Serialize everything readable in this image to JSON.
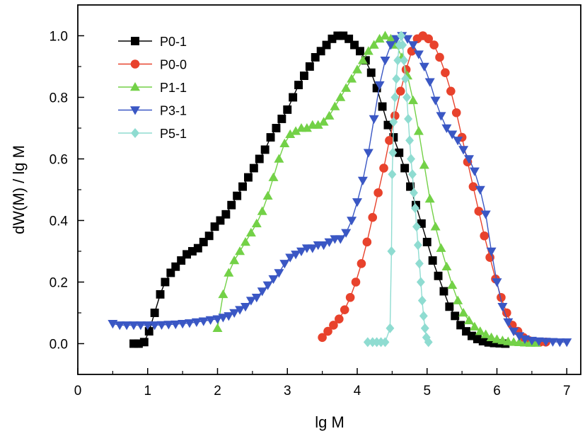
{
  "chart_data": {
    "type": "line",
    "title": "",
    "xlabel": "lg M",
    "ylabel": "dW(M) / lg M",
    "xlim": [
      0,
      7.2
    ],
    "ylim": [
      -0.1,
      1.1
    ],
    "x_ticks": [
      "0",
      "1",
      "2",
      "3",
      "4",
      "5",
      "6",
      "7"
    ],
    "y_ticks": [
      "0.0",
      "0.2",
      "0.4",
      "0.6",
      "0.8",
      "1.0"
    ],
    "grid": false,
    "legend_position": "top-left",
    "series": [
      {
        "name": "P0-1",
        "color": "#000000",
        "marker": "square",
        "points": [
          [
            0.8,
            0.0
          ],
          [
            0.87,
            0.0
          ],
          [
            0.95,
            0.005
          ],
          [
            1.02,
            0.04
          ],
          [
            1.1,
            0.1
          ],
          [
            1.18,
            0.16
          ],
          [
            1.25,
            0.2
          ],
          [
            1.33,
            0.23
          ],
          [
            1.4,
            0.25
          ],
          [
            1.48,
            0.27
          ],
          [
            1.56,
            0.29
          ],
          [
            1.64,
            0.3
          ],
          [
            1.72,
            0.31
          ],
          [
            1.8,
            0.33
          ],
          [
            1.88,
            0.35
          ],
          [
            1.96,
            0.38
          ],
          [
            2.04,
            0.4
          ],
          [
            2.12,
            0.42
          ],
          [
            2.2,
            0.45
          ],
          [
            2.28,
            0.48
          ],
          [
            2.36,
            0.51
          ],
          [
            2.44,
            0.54
          ],
          [
            2.52,
            0.57
          ],
          [
            2.6,
            0.6
          ],
          [
            2.68,
            0.63
          ],
          [
            2.76,
            0.67
          ],
          [
            2.84,
            0.7
          ],
          [
            2.92,
            0.73
          ],
          [
            3.0,
            0.76
          ],
          [
            3.08,
            0.8
          ],
          [
            3.16,
            0.84
          ],
          [
            3.24,
            0.87
          ],
          [
            3.32,
            0.9
          ],
          [
            3.4,
            0.93
          ],
          [
            3.48,
            0.95
          ],
          [
            3.56,
            0.97
          ],
          [
            3.64,
            0.99
          ],
          [
            3.72,
            1.0
          ],
          [
            3.8,
            1.0
          ],
          [
            3.88,
            0.99
          ],
          [
            3.96,
            0.97
          ],
          [
            4.04,
            0.95
          ],
          [
            4.12,
            0.92
          ],
          [
            4.2,
            0.88
          ],
          [
            4.28,
            0.83
          ],
          [
            4.36,
            0.77
          ],
          [
            4.44,
            0.71
          ],
          [
            4.52,
            0.67
          ],
          [
            4.6,
            0.62
          ],
          [
            4.68,
            0.57
          ],
          [
            4.76,
            0.51
          ],
          [
            4.84,
            0.45
          ],
          [
            4.92,
            0.39
          ],
          [
            5.0,
            0.33
          ],
          [
            5.08,
            0.27
          ],
          [
            5.16,
            0.22
          ],
          [
            5.24,
            0.17
          ],
          [
            5.32,
            0.12
          ],
          [
            5.4,
            0.09
          ],
          [
            5.48,
            0.06
          ],
          [
            5.56,
            0.04
          ],
          [
            5.64,
            0.025
          ],
          [
            5.72,
            0.015
          ],
          [
            5.8,
            0.008
          ],
          [
            5.88,
            0.004
          ],
          [
            5.96,
            0.002
          ],
          [
            6.04,
            0.001
          ],
          [
            6.12,
            0.0
          ]
        ]
      },
      {
        "name": "P0-0",
        "color": "#e8422c",
        "marker": "circle",
        "points": [
          [
            3.5,
            0.02
          ],
          [
            3.58,
            0.04
          ],
          [
            3.66,
            0.06
          ],
          [
            3.74,
            0.08
          ],
          [
            3.82,
            0.11
          ],
          [
            3.9,
            0.15
          ],
          [
            3.98,
            0.2
          ],
          [
            4.06,
            0.26
          ],
          [
            4.14,
            0.33
          ],
          [
            4.22,
            0.41
          ],
          [
            4.3,
            0.49
          ],
          [
            4.38,
            0.57
          ],
          [
            4.46,
            0.66
          ],
          [
            4.54,
            0.74
          ],
          [
            4.62,
            0.82
          ],
          [
            4.7,
            0.89
          ],
          [
            4.78,
            0.95
          ],
          [
            4.86,
            0.99
          ],
          [
            4.94,
            1.0
          ],
          [
            5.02,
            0.99
          ],
          [
            5.1,
            0.97
          ],
          [
            5.18,
            0.93
          ],
          [
            5.26,
            0.88
          ],
          [
            5.34,
            0.82
          ],
          [
            5.42,
            0.75
          ],
          [
            5.5,
            0.67
          ],
          [
            5.58,
            0.59
          ],
          [
            5.66,
            0.51
          ],
          [
            5.74,
            0.43
          ],
          [
            5.82,
            0.35
          ],
          [
            5.9,
            0.28
          ],
          [
            5.98,
            0.21
          ],
          [
            6.06,
            0.15
          ],
          [
            6.14,
            0.1
          ],
          [
            6.22,
            0.06
          ],
          [
            6.3,
            0.04
          ],
          [
            6.38,
            0.02
          ],
          [
            6.46,
            0.01
          ],
          [
            6.54,
            0.005
          ],
          [
            6.62,
            0.005
          ],
          [
            6.7,
            0.005
          ]
        ]
      },
      {
        "name": "P1-1",
        "color": "#73d147",
        "marker": "triangle-up",
        "points": [
          [
            2.0,
            0.05
          ],
          [
            2.08,
            0.16
          ],
          [
            2.16,
            0.23
          ],
          [
            2.24,
            0.27
          ],
          [
            2.32,
            0.3
          ],
          [
            2.4,
            0.33
          ],
          [
            2.48,
            0.36
          ],
          [
            2.56,
            0.39
          ],
          [
            2.64,
            0.43
          ],
          [
            2.72,
            0.48
          ],
          [
            2.8,
            0.54
          ],
          [
            2.88,
            0.6
          ],
          [
            2.96,
            0.65
          ],
          [
            3.04,
            0.68
          ],
          [
            3.12,
            0.69
          ],
          [
            3.2,
            0.7
          ],
          [
            3.28,
            0.7
          ],
          [
            3.36,
            0.71
          ],
          [
            3.44,
            0.71
          ],
          [
            3.52,
            0.72
          ],
          [
            3.6,
            0.74
          ],
          [
            3.68,
            0.77
          ],
          [
            3.76,
            0.8
          ],
          [
            3.84,
            0.83
          ],
          [
            3.92,
            0.86
          ],
          [
            4.0,
            0.89
          ],
          [
            4.08,
            0.92
          ],
          [
            4.16,
            0.95
          ],
          [
            4.24,
            0.97
          ],
          [
            4.32,
            0.99
          ],
          [
            4.4,
            1.0
          ],
          [
            4.48,
            0.99
          ],
          [
            4.56,
            0.97
          ],
          [
            4.64,
            0.93
          ],
          [
            4.72,
            0.87
          ],
          [
            4.8,
            0.79
          ],
          [
            4.88,
            0.69
          ],
          [
            4.96,
            0.58
          ],
          [
            5.04,
            0.47
          ],
          [
            5.12,
            0.38
          ],
          [
            5.2,
            0.31
          ],
          [
            5.28,
            0.25
          ],
          [
            5.36,
            0.19
          ],
          [
            5.44,
            0.14
          ],
          [
            5.52,
            0.1
          ],
          [
            5.6,
            0.075
          ],
          [
            5.68,
            0.055
          ],
          [
            5.76,
            0.04
          ],
          [
            5.84,
            0.03
          ],
          [
            5.92,
            0.02
          ],
          [
            6.0,
            0.014
          ],
          [
            6.08,
            0.01
          ],
          [
            6.16,
            0.007
          ],
          [
            6.24,
            0.005
          ],
          [
            6.32,
            0.004
          ],
          [
            6.4,
            0.003
          ],
          [
            6.48,
            0.002
          ],
          [
            6.56,
            0.002
          ]
        ]
      },
      {
        "name": "P3-1",
        "color": "#3a57c4",
        "marker": "triangle-down",
        "points": [
          [
            0.5,
            0.065
          ],
          [
            0.6,
            0.06
          ],
          [
            0.7,
            0.06
          ],
          [
            0.8,
            0.06
          ],
          [
            0.9,
            0.06
          ],
          [
            1.0,
            0.06
          ],
          [
            1.1,
            0.06
          ],
          [
            1.2,
            0.061
          ],
          [
            1.3,
            0.062
          ],
          [
            1.4,
            0.063
          ],
          [
            1.5,
            0.065
          ],
          [
            1.6,
            0.067
          ],
          [
            1.7,
            0.07
          ],
          [
            1.8,
            0.073
          ],
          [
            1.9,
            0.077
          ],
          [
            2.0,
            0.08
          ],
          [
            2.08,
            0.085
          ],
          [
            2.16,
            0.09
          ],
          [
            2.24,
            0.1
          ],
          [
            2.32,
            0.11
          ],
          [
            2.4,
            0.12
          ],
          [
            2.48,
            0.14
          ],
          [
            2.56,
            0.15
          ],
          [
            2.64,
            0.17
          ],
          [
            2.72,
            0.19
          ],
          [
            2.8,
            0.21
          ],
          [
            2.88,
            0.23
          ],
          [
            2.96,
            0.26
          ],
          [
            3.04,
            0.28
          ],
          [
            3.12,
            0.29
          ],
          [
            3.2,
            0.3
          ],
          [
            3.28,
            0.31
          ],
          [
            3.36,
            0.31
          ],
          [
            3.44,
            0.32
          ],
          [
            3.52,
            0.32
          ],
          [
            3.6,
            0.33
          ],
          [
            3.68,
            0.34
          ],
          [
            3.76,
            0.34
          ],
          [
            3.84,
            0.36
          ],
          [
            3.92,
            0.4
          ],
          [
            4.0,
            0.46
          ],
          [
            4.08,
            0.53
          ],
          [
            4.16,
            0.62
          ],
          [
            4.24,
            0.73
          ],
          [
            4.32,
            0.84
          ],
          [
            4.4,
            0.92
          ],
          [
            4.48,
            0.97
          ],
          [
            4.56,
            0.99
          ],
          [
            4.64,
            1.0
          ],
          [
            4.72,
            0.99
          ],
          [
            4.8,
            0.97
          ],
          [
            4.88,
            0.94
          ],
          [
            4.96,
            0.9
          ],
          [
            5.04,
            0.85
          ],
          [
            5.12,
            0.79
          ],
          [
            5.2,
            0.74
          ],
          [
            5.28,
            0.7
          ],
          [
            5.36,
            0.68
          ],
          [
            5.44,
            0.66
          ],
          [
            5.52,
            0.63
          ],
          [
            5.6,
            0.6
          ],
          [
            5.68,
            0.56
          ],
          [
            5.76,
            0.5
          ],
          [
            5.84,
            0.42
          ],
          [
            5.92,
            0.3
          ],
          [
            6.0,
            0.2
          ],
          [
            6.08,
            0.12
          ],
          [
            6.16,
            0.07
          ],
          [
            6.24,
            0.04
          ],
          [
            6.32,
            0.025
          ],
          [
            6.4,
            0.015
          ],
          [
            6.5,
            0.01
          ],
          [
            6.6,
            0.008
          ],
          [
            6.7,
            0.007
          ],
          [
            6.8,
            0.006
          ],
          [
            6.9,
            0.005
          ],
          [
            7.0,
            0.005
          ]
        ]
      },
      {
        "name": "P5-1",
        "color": "#8fdcd1",
        "marker": "diamond",
        "points": [
          [
            4.15,
            0.005
          ],
          [
            4.22,
            0.005
          ],
          [
            4.28,
            0.005
          ],
          [
            4.34,
            0.005
          ],
          [
            4.4,
            0.005
          ],
          [
            4.47,
            0.05
          ],
          [
            4.49,
            0.3
          ],
          [
            4.5,
            0.55
          ],
          [
            4.51,
            0.62
          ],
          [
            4.52,
            0.72
          ],
          [
            4.54,
            0.8
          ],
          [
            4.56,
            0.86
          ],
          [
            4.58,
            0.92
          ],
          [
            4.6,
            0.97
          ],
          [
            4.63,
            1.0
          ],
          [
            4.65,
            0.97
          ],
          [
            4.67,
            0.92
          ],
          [
            4.69,
            0.86
          ],
          [
            4.71,
            0.8
          ],
          [
            4.73,
            0.73
          ],
          [
            4.75,
            0.66
          ],
          [
            4.77,
            0.6
          ],
          [
            4.79,
            0.55
          ],
          [
            4.81,
            0.49
          ],
          [
            4.83,
            0.44
          ],
          [
            4.85,
            0.38
          ],
          [
            4.87,
            0.32
          ],
          [
            4.89,
            0.26
          ],
          [
            4.91,
            0.2
          ],
          [
            4.93,
            0.14
          ],
          [
            4.95,
            0.09
          ],
          [
            4.97,
            0.05
          ],
          [
            4.99,
            0.02
          ],
          [
            5.02,
            0.005
          ]
        ]
      }
    ]
  }
}
